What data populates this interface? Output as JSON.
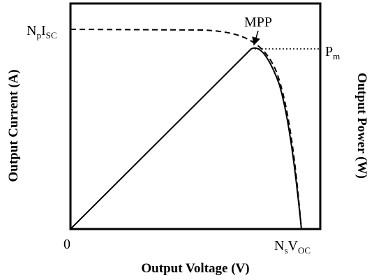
{
  "title_x": "Output Voltage  (V)",
  "title_y_left": "Output Current  (A)",
  "title_y_right": "Output Power  (W)",
  "isc_label": [
    "N",
    "p",
    "I",
    "SC"
  ],
  "voc_label": [
    "N",
    "s",
    "V",
    "OC"
  ],
  "pm_label": [
    "P",
    "m"
  ],
  "mpp_label": "MPP",
  "origin_label": "0"
}
